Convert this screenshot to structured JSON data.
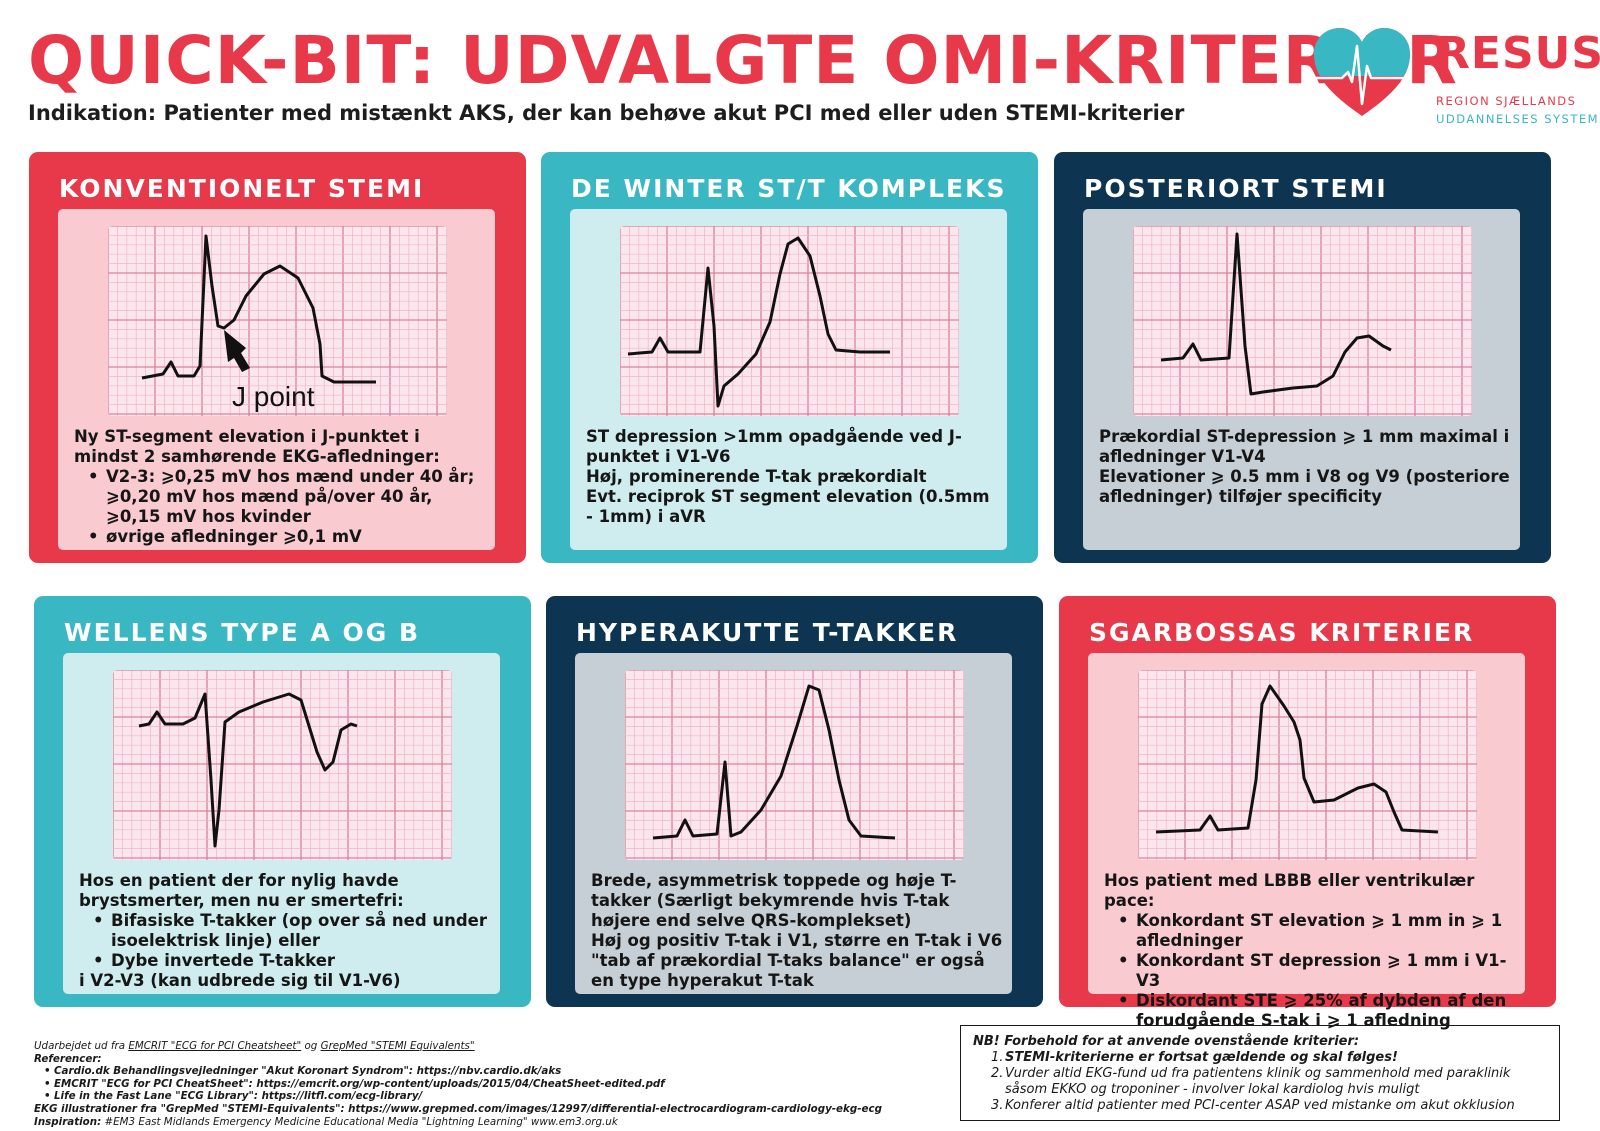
{
  "header": {
    "title": "QUICK-BIT: UDVALGTE OMI-KRITERIER",
    "subtitle": "Indikation: Patienter med mistænkt AKS, der kan behøve akut PCI med eller uden STEMI-kriterier"
  },
  "logo": {
    "name": "RESUS",
    "line1": "REGION SJÆLLANDS",
    "line2": "UDDANNELSES SYSTEM",
    "icon": "heart-ecg-icon"
  },
  "colors": {
    "red": "#e8394a",
    "teal": "#39b8c3",
    "navy": "#0d3551"
  },
  "cards": [
    {
      "title": "KONVENTIONELT STEMI",
      "ecg_label": "J point",
      "intro": "Ny ST-segment elevation i J-punktet i mindst 2 samhørende EKG-afledninger:",
      "bullets": [
        "V2-3: ⩾0,25 mV hos mænd under 40 år; ⩾0,20 mV hos mænd på/over 40 år, ⩾0,15 mV hos kvinder",
        "øvrige afledninger ⩾0,1 mV"
      ]
    },
    {
      "title": "DE WINTER ST/T KOMPLEKS",
      "lines": [
        "ST depression >1mm opadgående ved J-punktet i V1-V6",
        "Høj, prominerende T-tak prækordialt",
        "Evt. reciprok ST segment elevation (0.5mm - 1mm) i aVR"
      ]
    },
    {
      "title": "POSTERIORT STEMI",
      "lines": [
        "Prækordial ST-depression ⩾ 1 mm maximal i afledninger V1-V4",
        "Elevationer ⩾ 0.5 mm i V8 og V9 (posteriore afledninger) tilføjer specificity"
      ]
    },
    {
      "title": "WELLENS TYPE A OG B",
      "intro": "Hos en patient der for nylig havde brystsmerter, men nu er smertefri:",
      "bullets": [
        "Bifasiske T-takker (op over så ned under isoelektrisk linje) eller",
        "Dybe invertede T-takker"
      ],
      "outro": "i V2-V3 (kan udbrede sig til V1-V6)"
    },
    {
      "title": "HYPERAKUTTE T-TAKKER",
      "lines": [
        "Brede, asymmetrisk toppede og høje T-takker (Særligt bekymrende hvis T-tak højere end selve QRS-komplekset)",
        "Høj og positiv T-tak i V1, større en T-tak i V6 \"tab af prækordial T-taks balance\" er også en type hyperakut T-tak"
      ]
    },
    {
      "title": "SGARBOSSAS KRITERIER",
      "intro": "Hos patient med LBBB eller ventrikulær pace:",
      "bullets": [
        "Konkordant ST elevation ⩾ 1 mm in ⩾ 1 afledninger",
        "Konkordant ST depression ⩾ 1 mm i V1-V3",
        "Diskordant STE ⩾ 25% af dybden af den forudgående S-tak i ⩾ 1 afledning"
      ]
    }
  ],
  "references": {
    "prepared_prefix": "Udarbejdet ud fra ",
    "prepared_link1": "EMCRIT \"ECG for PCI Cheatsheet\"",
    "prepared_mid": " og ",
    "prepared_link2": "GrepMed \"STEMI Equivalents\"",
    "heading": "Referencer:",
    "items": [
      "Cardio.dk Behandlingsvejledninger \"Akut Koronart Syndrom\": https://nbv.cardio.dk/aks",
      "EMCRIT \"ECG for PCI CheatSheet\": https://emcrit.org/wp-content/uploads/2015/04/CheatSheet-edited.pdf",
      "Life in the Fast Lane \"ECG Library\": https://litfl.com/ecg-library/"
    ],
    "ekg_line": "EKG illustrationer fra \"GrepMed \"STEMI-Equivalents\": https://www.grepmed.com/images/12997/differential-electrocardiogram-cardiology-ekg-ecg",
    "inspiration_label": "Inspiration:",
    "inspiration_text": " #EM3 East Midlands Emergency Medicine Educational Media \"Lightning Learning\" www.em3.org.uk"
  },
  "note": {
    "heading": "NB! Forbehold for at anvende ovenstående kriterier:",
    "items": [
      {
        "num": "1.",
        "text": "STEMI-kriterierne er fortsat gældende og skal følges!"
      },
      {
        "num": "2.",
        "text": "Vurder altid EKG-fund ud fra patientens klinik og sammenhold med paraklinik såsom EKKO og troponiner - involver lokal kardiolog hvis muligt"
      },
      {
        "num": "3.",
        "text": "Konferer altid patienter med PCI-center ASAP ved mistanke om akut okklusion"
      }
    ]
  }
}
